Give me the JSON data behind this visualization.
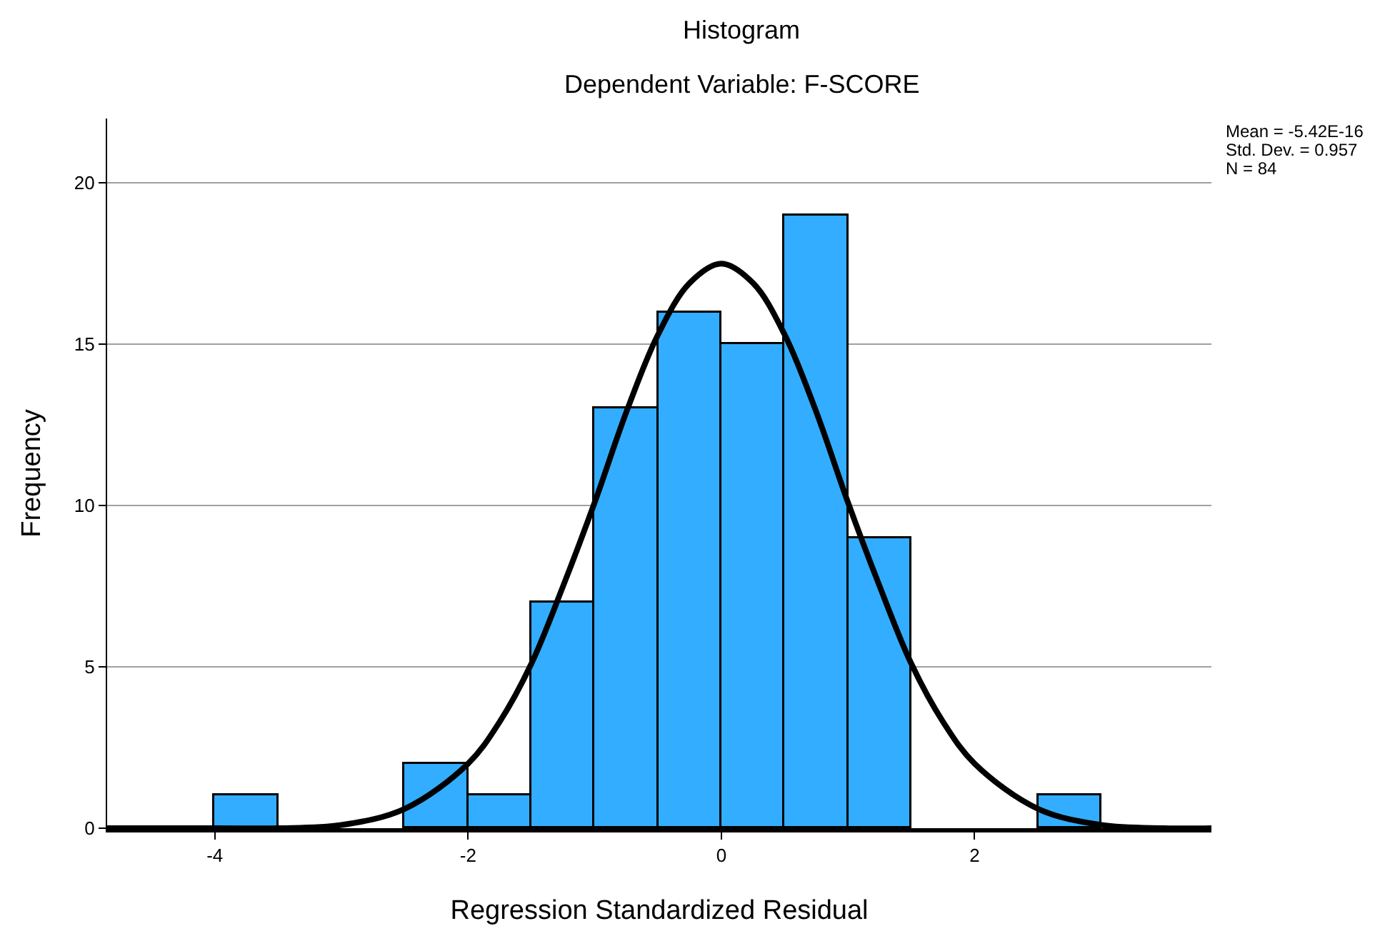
{
  "chart_data": {
    "type": "histogram",
    "title": "Histogram",
    "subtitle": "Dependent Variable: F-SCORE",
    "xlabel": "Regression Standardized Residual",
    "ylabel": "Frequency",
    "bins": [
      -4,
      -3.5,
      -3,
      -2.5,
      -2,
      -1.5,
      -1,
      -0.5,
      0,
      0.5,
      1,
      1.5,
      2,
      2.5,
      3
    ],
    "values": [
      1,
      0,
      0,
      2,
      1,
      7,
      13,
      16,
      15,
      19,
      9,
      0,
      0,
      1
    ],
    "color": "#33adff",
    "series": [
      {
        "type": "line",
        "color": "#000000",
        "x": [
          -4.85,
          -4,
          -3.5,
          -3,
          -2.5,
          -2,
          -1.75,
          -1.5,
          -1.25,
          -1,
          -0.75,
          -0.5,
          -0.25,
          0,
          0.25,
          0.5,
          0.75,
          1,
          1.25,
          1.5,
          1.75,
          2,
          2.5,
          3,
          3.5,
          3.87
        ],
        "values": [
          0,
          0,
          0,
          0.1,
          0.6,
          2,
          3.3,
          5.1,
          7.5,
          10.1,
          12.9,
          15.3,
          16.9,
          17.5,
          16.9,
          15.3,
          12.9,
          10.1,
          7.5,
          5.1,
          3.3,
          2,
          0.6,
          0.1,
          0,
          0
        ]
      }
    ],
    "xlim": [
      -4.85,
      3.87
    ],
    "xticks": [
      -4,
      -2,
      0,
      2
    ],
    "ylim": [
      0,
      22
    ],
    "yticks": [
      0,
      5,
      10,
      15,
      20
    ],
    "grid": "y",
    "annotations": [
      "Mean = -5.42E-16",
      "Std. Dev. = 0.957",
      "N = 84"
    ]
  }
}
